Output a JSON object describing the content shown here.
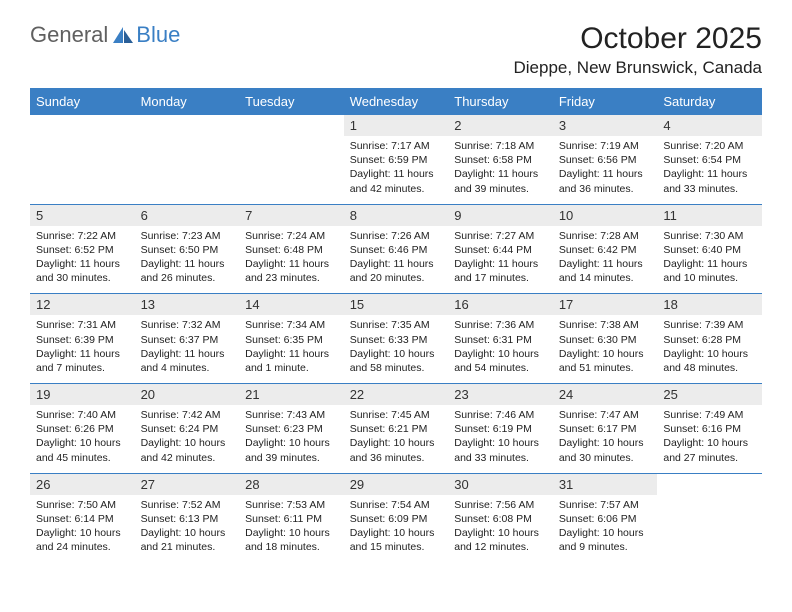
{
  "logo": {
    "part1": "General",
    "part2": "Blue"
  },
  "title": "October 2025",
  "subtitle": "Dieppe, New Brunswick, Canada",
  "colors": {
    "accent": "#3a7fc4",
    "daynum_bg": "#ececec",
    "text": "#222222"
  },
  "weekdays": [
    "Sunday",
    "Monday",
    "Tuesday",
    "Wednesday",
    "Thursday",
    "Friday",
    "Saturday"
  ],
  "weeks": [
    [
      null,
      null,
      null,
      {
        "n": "1",
        "sr": "7:17 AM",
        "ss": "6:59 PM",
        "dl": "11 hours and 42 minutes."
      },
      {
        "n": "2",
        "sr": "7:18 AM",
        "ss": "6:58 PM",
        "dl": "11 hours and 39 minutes."
      },
      {
        "n": "3",
        "sr": "7:19 AM",
        "ss": "6:56 PM",
        "dl": "11 hours and 36 minutes."
      },
      {
        "n": "4",
        "sr": "7:20 AM",
        "ss": "6:54 PM",
        "dl": "11 hours and 33 minutes."
      }
    ],
    [
      {
        "n": "5",
        "sr": "7:22 AM",
        "ss": "6:52 PM",
        "dl": "11 hours and 30 minutes."
      },
      {
        "n": "6",
        "sr": "7:23 AM",
        "ss": "6:50 PM",
        "dl": "11 hours and 26 minutes."
      },
      {
        "n": "7",
        "sr": "7:24 AM",
        "ss": "6:48 PM",
        "dl": "11 hours and 23 minutes."
      },
      {
        "n": "8",
        "sr": "7:26 AM",
        "ss": "6:46 PM",
        "dl": "11 hours and 20 minutes."
      },
      {
        "n": "9",
        "sr": "7:27 AM",
        "ss": "6:44 PM",
        "dl": "11 hours and 17 minutes."
      },
      {
        "n": "10",
        "sr": "7:28 AM",
        "ss": "6:42 PM",
        "dl": "11 hours and 14 minutes."
      },
      {
        "n": "11",
        "sr": "7:30 AM",
        "ss": "6:40 PM",
        "dl": "11 hours and 10 minutes."
      }
    ],
    [
      {
        "n": "12",
        "sr": "7:31 AM",
        "ss": "6:39 PM",
        "dl": "11 hours and 7 minutes."
      },
      {
        "n": "13",
        "sr": "7:32 AM",
        "ss": "6:37 PM",
        "dl": "11 hours and 4 minutes."
      },
      {
        "n": "14",
        "sr": "7:34 AM",
        "ss": "6:35 PM",
        "dl": "11 hours and 1 minute."
      },
      {
        "n": "15",
        "sr": "7:35 AM",
        "ss": "6:33 PM",
        "dl": "10 hours and 58 minutes."
      },
      {
        "n": "16",
        "sr": "7:36 AM",
        "ss": "6:31 PM",
        "dl": "10 hours and 54 minutes."
      },
      {
        "n": "17",
        "sr": "7:38 AM",
        "ss": "6:30 PM",
        "dl": "10 hours and 51 minutes."
      },
      {
        "n": "18",
        "sr": "7:39 AM",
        "ss": "6:28 PM",
        "dl": "10 hours and 48 minutes."
      }
    ],
    [
      {
        "n": "19",
        "sr": "7:40 AM",
        "ss": "6:26 PM",
        "dl": "10 hours and 45 minutes."
      },
      {
        "n": "20",
        "sr": "7:42 AM",
        "ss": "6:24 PM",
        "dl": "10 hours and 42 minutes."
      },
      {
        "n": "21",
        "sr": "7:43 AM",
        "ss": "6:23 PM",
        "dl": "10 hours and 39 minutes."
      },
      {
        "n": "22",
        "sr": "7:45 AM",
        "ss": "6:21 PM",
        "dl": "10 hours and 36 minutes."
      },
      {
        "n": "23",
        "sr": "7:46 AM",
        "ss": "6:19 PM",
        "dl": "10 hours and 33 minutes."
      },
      {
        "n": "24",
        "sr": "7:47 AM",
        "ss": "6:17 PM",
        "dl": "10 hours and 30 minutes."
      },
      {
        "n": "25",
        "sr": "7:49 AM",
        "ss": "6:16 PM",
        "dl": "10 hours and 27 minutes."
      }
    ],
    [
      {
        "n": "26",
        "sr": "7:50 AM",
        "ss": "6:14 PM",
        "dl": "10 hours and 24 minutes."
      },
      {
        "n": "27",
        "sr": "7:52 AM",
        "ss": "6:13 PM",
        "dl": "10 hours and 21 minutes."
      },
      {
        "n": "28",
        "sr": "7:53 AM",
        "ss": "6:11 PM",
        "dl": "10 hours and 18 minutes."
      },
      {
        "n": "29",
        "sr": "7:54 AM",
        "ss": "6:09 PM",
        "dl": "10 hours and 15 minutes."
      },
      {
        "n": "30",
        "sr": "7:56 AM",
        "ss": "6:08 PM",
        "dl": "10 hours and 12 minutes."
      },
      {
        "n": "31",
        "sr": "7:57 AM",
        "ss": "6:06 PM",
        "dl": "10 hours and 9 minutes."
      },
      null
    ]
  ],
  "labels": {
    "sunrise": "Sunrise:",
    "sunset": "Sunset:",
    "daylight": "Daylight:"
  }
}
